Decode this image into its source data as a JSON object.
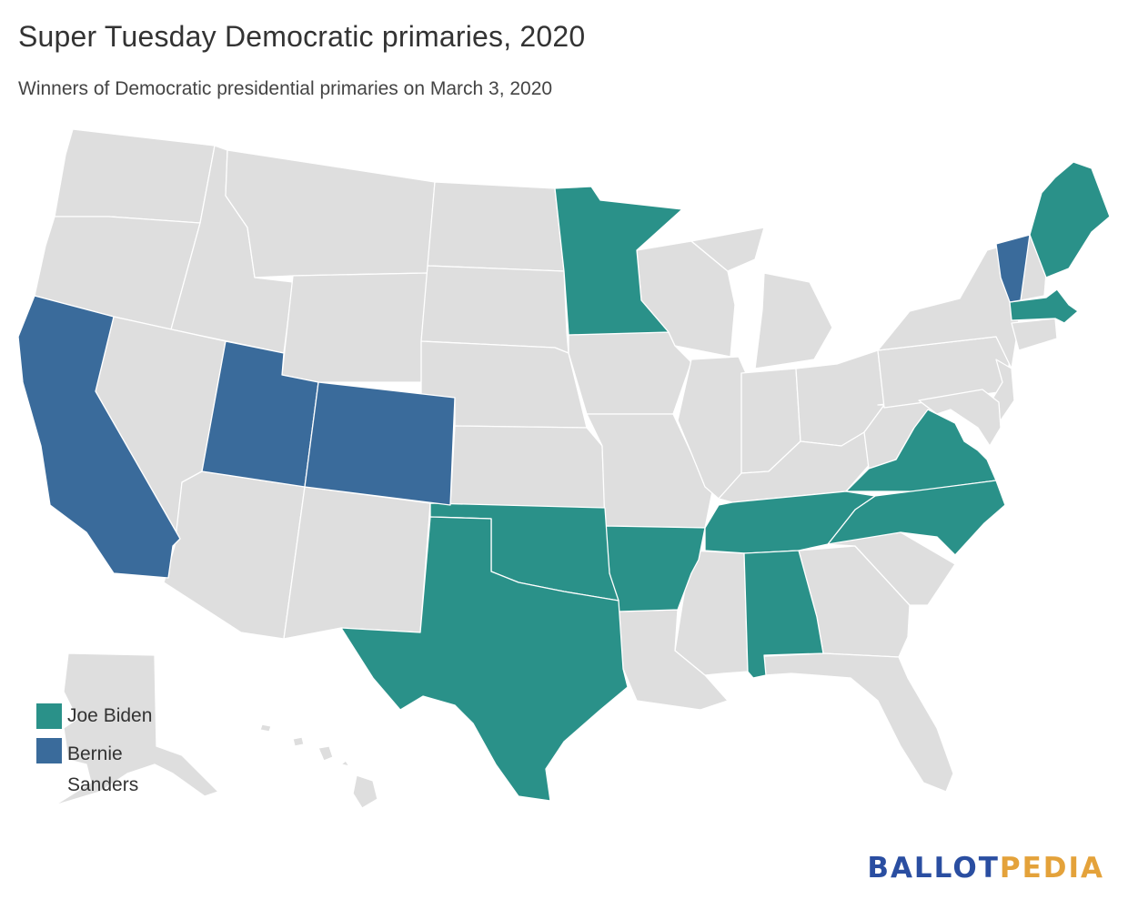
{
  "title": "Super Tuesday Democratic primaries, 2020",
  "subtitle": "Winners of Democratic presidential primaries on March 3, 2020",
  "colors": {
    "biden": "#2a9189",
    "sanders": "#3a6b9b",
    "none": "#dedede",
    "logo_primary": "#2a4ea1",
    "logo_accent": "#e4a23a"
  },
  "legend": [
    {
      "label": "Joe Biden",
      "color": "#2a9189"
    },
    {
      "label": "Bernie Sanders",
      "color": "#3a6b9b"
    }
  ],
  "winners": {
    "Joe Biden": [
      "Minnesota",
      "Maine",
      "Massachusetts",
      "Virginia",
      "North Carolina",
      "Tennessee",
      "Alabama",
      "Arkansas",
      "Oklahoma",
      "Texas"
    ],
    "Bernie Sanders": [
      "California",
      "Utah",
      "Colorado",
      "Vermont"
    ]
  },
  "logo": {
    "part1": "BALLOT",
    "part2": "PEDIA"
  }
}
